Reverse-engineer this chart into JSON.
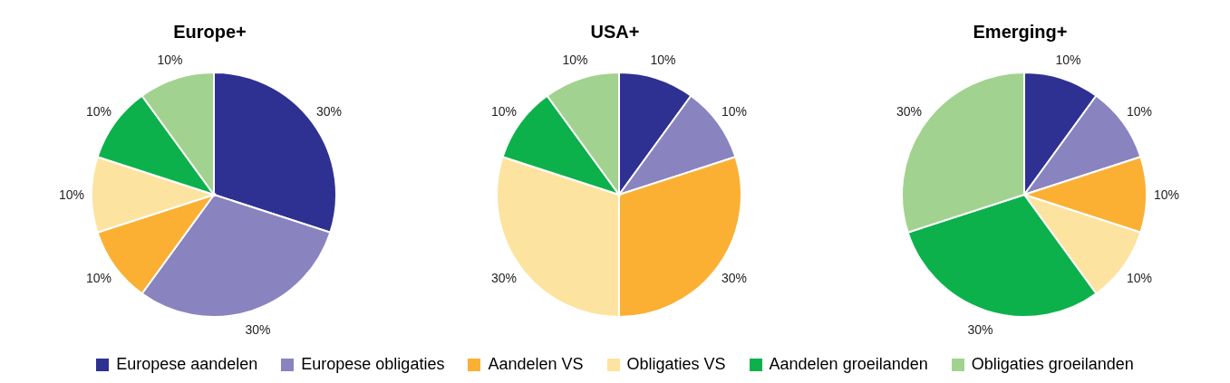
{
  "chart_data": [
    {
      "type": "pie",
      "title": "Europe+",
      "categories": [
        "Europese aandelen",
        "Europese obligaties",
        "Aandelen VS",
        "Obligaties VS",
        "Aandelen groeilanden",
        "Obligaties groeilanden"
      ],
      "values": [
        30,
        30,
        10,
        10,
        10,
        10
      ],
      "value_labels": [
        "30%",
        "30%",
        "10%",
        "10%",
        "10%",
        "10%"
      ],
      "colors": [
        "#2e3192",
        "#8983bf",
        "#fbb034",
        "#fde3a0",
        "#0db14b",
        "#a2d28f"
      ],
      "legend": "bottom"
    },
    {
      "type": "pie",
      "title": "USA+",
      "categories": [
        null,
        null,
        null,
        null,
        null,
        null
      ],
      "values": [
        10,
        10,
        30,
        30,
        10,
        10
      ],
      "value_labels": [
        "10%",
        "10%",
        "30%",
        "30%",
        "10%",
        "10%"
      ],
      "colors": [
        "#2e3192",
        "#8983bf",
        "#fbb034",
        "#fde3a0",
        "#0db14b",
        "#a2d28f"
      ]
    },
    {
      "type": "pie",
      "title": "Emerging+",
      "categories": [
        null,
        null,
        null,
        null,
        null,
        null
      ],
      "values": [
        10,
        10,
        10,
        10,
        30,
        30
      ],
      "value_labels": [
        "10%",
        "10%",
        "10%",
        "10%",
        "30%",
        "30%"
      ],
      "colors": [
        "#2e3192",
        "#8983bf",
        "#fbb034",
        "#fde3a0",
        "#0db14b",
        "#a2d28f"
      ]
    }
  ]
}
